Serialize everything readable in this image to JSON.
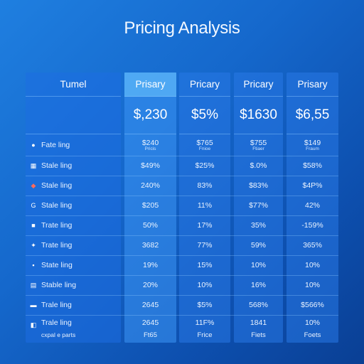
{
  "title": "Pricing Analysis",
  "table": {
    "headers": [
      "Tumel",
      "Prisary",
      "Pricary",
      "Pricary",
      "Prisary"
    ],
    "totals": [
      "",
      "$,230",
      "$5%",
      "$1630",
      "$6,55"
    ],
    "rows": [
      {
        "icon": "circle-icon",
        "glyph": "●",
        "label": "Fate ling",
        "values": [
          "$240",
          "$765",
          "$755",
          "$149"
        ],
        "subs": [
          "Pricis",
          "Fnioe",
          "Ftiaer",
          "Fraum"
        ]
      },
      {
        "icon": "grid-icon",
        "glyph": "▦",
        "label": "Stale ling",
        "values": [
          "$49%",
          "$25%",
          "$.0%",
          "$58%"
        ]
      },
      {
        "icon": "flag-icon",
        "glyph": "◆",
        "label": "Stale ling",
        "values": [
          "240%",
          "83%",
          "$83%",
          "$4P%"
        ]
      },
      {
        "icon": "g-icon",
        "glyph": "G",
        "label": "Stale ling",
        "values": [
          "$205",
          "11%",
          "$77%",
          "42%"
        ]
      },
      {
        "icon": "square-icon",
        "glyph": "■",
        "label": "Trate ling",
        "values": [
          "50%",
          "17%",
          "35%",
          "-159%"
        ]
      },
      {
        "icon": "pin-icon",
        "glyph": "✦",
        "label": "Trate ling",
        "values": [
          "3682",
          "77%",
          "59%",
          "365%"
        ]
      },
      {
        "icon": "box-icon",
        "glyph": "▪",
        "label": "State ling",
        "values": [
          "19%",
          "15%",
          "10%",
          "10%"
        ]
      },
      {
        "icon": "doc-icon",
        "glyph": "▤",
        "label": "Stable ling",
        "values": [
          "20%",
          "10%",
          "16%",
          "10%"
        ]
      },
      {
        "icon": "chart-icon",
        "glyph": "▬",
        "label": "Trale ling",
        "values": [
          "2645",
          "$5%",
          "568%",
          "$566%"
        ]
      },
      {
        "icon": "tag-icon",
        "glyph": "◧",
        "label": "Trale ling",
        "label2": "cxpal e parts",
        "values": [
          "2645",
          "11F%",
          "1841",
          "10%"
        ],
        "values2": [
          "Ft65",
          "Frice",
          "Fiets",
          "Foets"
        ]
      }
    ]
  },
  "colors": {
    "background_start": "#1f7fe0",
    "background_end": "#0a3f94",
    "highlight_column": "#6ec8ff"
  }
}
